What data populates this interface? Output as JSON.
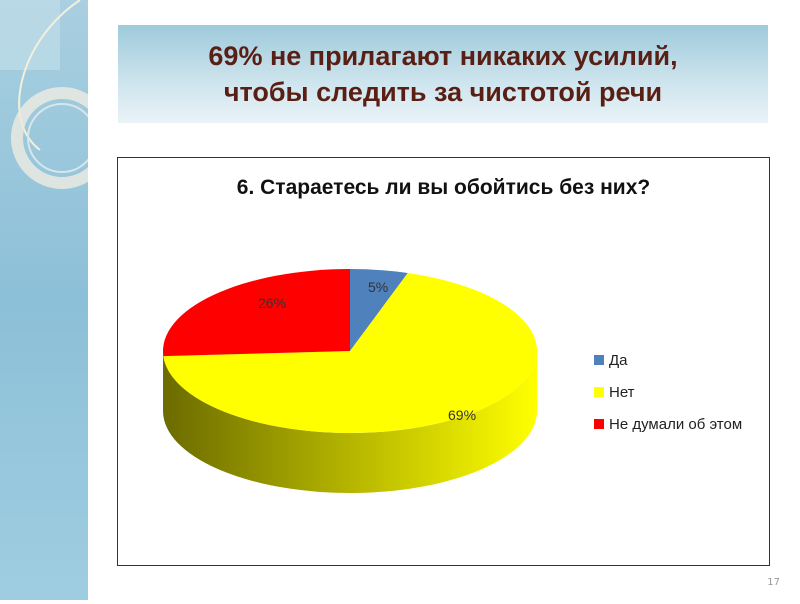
{
  "slide": {
    "title": "69% не прилагают никаких усилий, чтобы следить за чистотой речи",
    "page_number": "17"
  },
  "chart_data": {
    "type": "pie",
    "style": "3d",
    "title": "6. Стараетесь ли вы обойтись без них?",
    "categories": [
      "Да",
      "Нет",
      "Не думали об этом"
    ],
    "values": [
      5,
      69,
      26
    ],
    "data_labels": [
      "5%",
      "69%",
      "26%"
    ],
    "colors": [
      "#4f81bd",
      "#ffff00",
      "#ff0000"
    ],
    "legend_position": "right"
  }
}
